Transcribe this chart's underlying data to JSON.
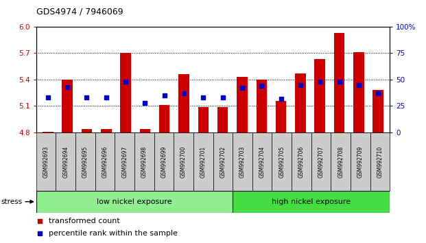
{
  "title": "GDS4974 / 7946069",
  "samples": [
    "GSM992693",
    "GSM992694",
    "GSM992695",
    "GSM992696",
    "GSM992697",
    "GSM992698",
    "GSM992699",
    "GSM992700",
    "GSM992701",
    "GSM992702",
    "GSM992703",
    "GSM992704",
    "GSM992705",
    "GSM992706",
    "GSM992707",
    "GSM992708",
    "GSM992709",
    "GSM992710"
  ],
  "transformed_counts": [
    4.81,
    5.4,
    4.84,
    4.84,
    5.7,
    4.84,
    5.11,
    5.46,
    5.09,
    5.09,
    5.43,
    5.4,
    5.16,
    5.47,
    5.63,
    5.93,
    5.71,
    5.28
  ],
  "percentile_ranks": [
    33,
    43,
    33,
    33,
    48,
    28,
    35,
    37,
    33,
    33,
    42,
    44,
    32,
    45,
    48,
    48,
    45,
    37
  ],
  "ymin": 4.8,
  "ymax": 6.0,
  "yticks_left": [
    4.8,
    5.1,
    5.4,
    5.7,
    6.0
  ],
  "yticks_right_vals": [
    0,
    25,
    50,
    75,
    100
  ],
  "yticks_right_labels": [
    "0",
    "25",
    "50",
    "75",
    "100%"
  ],
  "bar_color": "#CC0000",
  "dot_color": "#0000CC",
  "low_color": "#90EE90",
  "high_color": "#44DD44",
  "low_group_label": "low nickel exposure",
  "high_group_label": "high nickel exposure",
  "low_group_count": 10,
  "high_group_count": 8,
  "stress_label": "stress",
  "legend_items": [
    "transformed count",
    "percentile rank within the sample"
  ]
}
